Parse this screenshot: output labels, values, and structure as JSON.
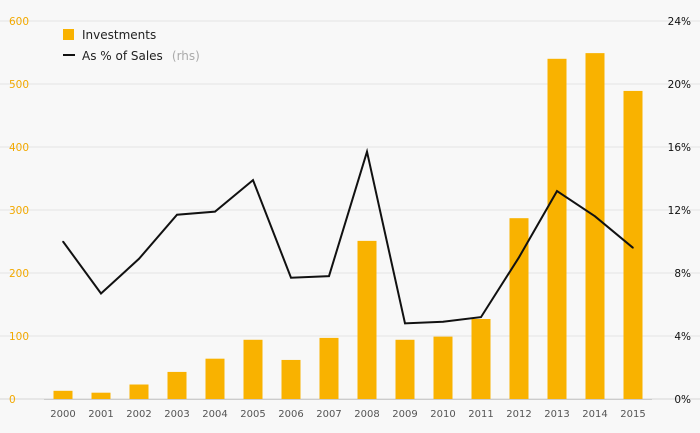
{
  "chart_data": {
    "type": "bar+line",
    "categories": [
      "2000",
      "2001",
      "2002",
      "2003",
      "2004",
      "2005",
      "2006",
      "2007",
      "2008",
      "2009",
      "2010",
      "2011",
      "2012",
      "2013",
      "2014",
      "2015"
    ],
    "series": [
      {
        "name": "Investments",
        "type": "bar",
        "axis": "left",
        "color": "#f9b200",
        "values": [
          13,
          10,
          23,
          43,
          64,
          94,
          62,
          97,
          251,
          94,
          99,
          127,
          287,
          540,
          549,
          489
        ]
      },
      {
        "name": "As % of Sales",
        "type": "line",
        "axis": "right",
        "color": "#111111",
        "values": [
          10.0,
          6.7,
          8.9,
          11.7,
          11.9,
          13.9,
          7.7,
          7.8,
          15.7,
          4.8,
          4.9,
          5.2,
          9.0,
          13.2,
          11.6,
          9.6
        ]
      }
    ],
    "left_axis": {
      "ylim": [
        0,
        600
      ],
      "ticks": [
        "0",
        "100",
        "200",
        "300",
        "400",
        "500",
        "600"
      ],
      "color": "#f2a900"
    },
    "right_axis": {
      "ylim": [
        0,
        24
      ],
      "ticks": [
        "0%",
        "4%",
        "8%",
        "12%",
        "16%",
        "20%",
        "24%"
      ],
      "color": "#111111"
    },
    "legend": {
      "items": [
        {
          "label": "Investments",
          "suffix": "",
          "marker": "square"
        },
        {
          "label": "As % of Sales",
          "suffix": "(rhs)",
          "marker": "line"
        }
      ],
      "placement": "top-left"
    },
    "grid": true
  }
}
